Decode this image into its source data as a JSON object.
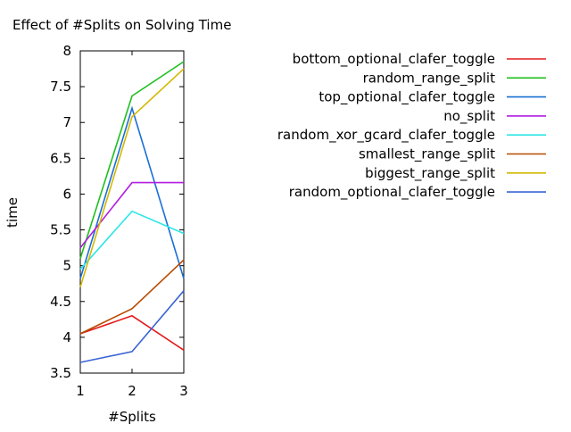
{
  "chart_data": {
    "type": "line",
    "title": "Effect of #Splits on Solving Time",
    "xlabel": "#Splits",
    "ylabel": "time",
    "x": [
      1,
      2,
      3
    ],
    "xlim": [
      1,
      3
    ],
    "ylim": [
      3.5,
      8
    ],
    "xticks": [
      "1",
      "2",
      "3"
    ],
    "yticks": [
      "3.5",
      "4",
      "4.5",
      "5",
      "5.5",
      "6",
      "6.5",
      "7",
      "7.5",
      "8"
    ],
    "grid": false,
    "legend_position": "top-right",
    "series": [
      {
        "name": "bottom_optional_clafer_toggle",
        "color": "#e41a1c",
        "values": [
          4.05,
          4.3,
          3.82
        ]
      },
      {
        "name": "random_range_split",
        "color": "#1fbf1f",
        "values": [
          5.1,
          7.37,
          7.85
        ]
      },
      {
        "name": "top_optional_clafer_toggle",
        "color": "#1a6fd6",
        "values": [
          4.82,
          7.2,
          4.82
        ]
      },
      {
        "name": "no_split",
        "color": "#b21ee0",
        "values": [
          5.25,
          6.16,
          6.16
        ]
      },
      {
        "name": "random_xor_gcard_clafer_toggle",
        "color": "#2ee6e6",
        "values": [
          4.95,
          5.76,
          5.45
        ]
      },
      {
        "name": "smallest_range_split",
        "color": "#b84a00",
        "values": [
          4.05,
          4.4,
          5.08
        ]
      },
      {
        "name": "biggest_range_split",
        "color": "#d4b800",
        "values": [
          4.7,
          7.08,
          7.75
        ]
      },
      {
        "name": "random_optional_clafer_toggle",
        "color": "#3a64d4",
        "values": [
          3.65,
          3.8,
          4.65
        ]
      }
    ]
  }
}
